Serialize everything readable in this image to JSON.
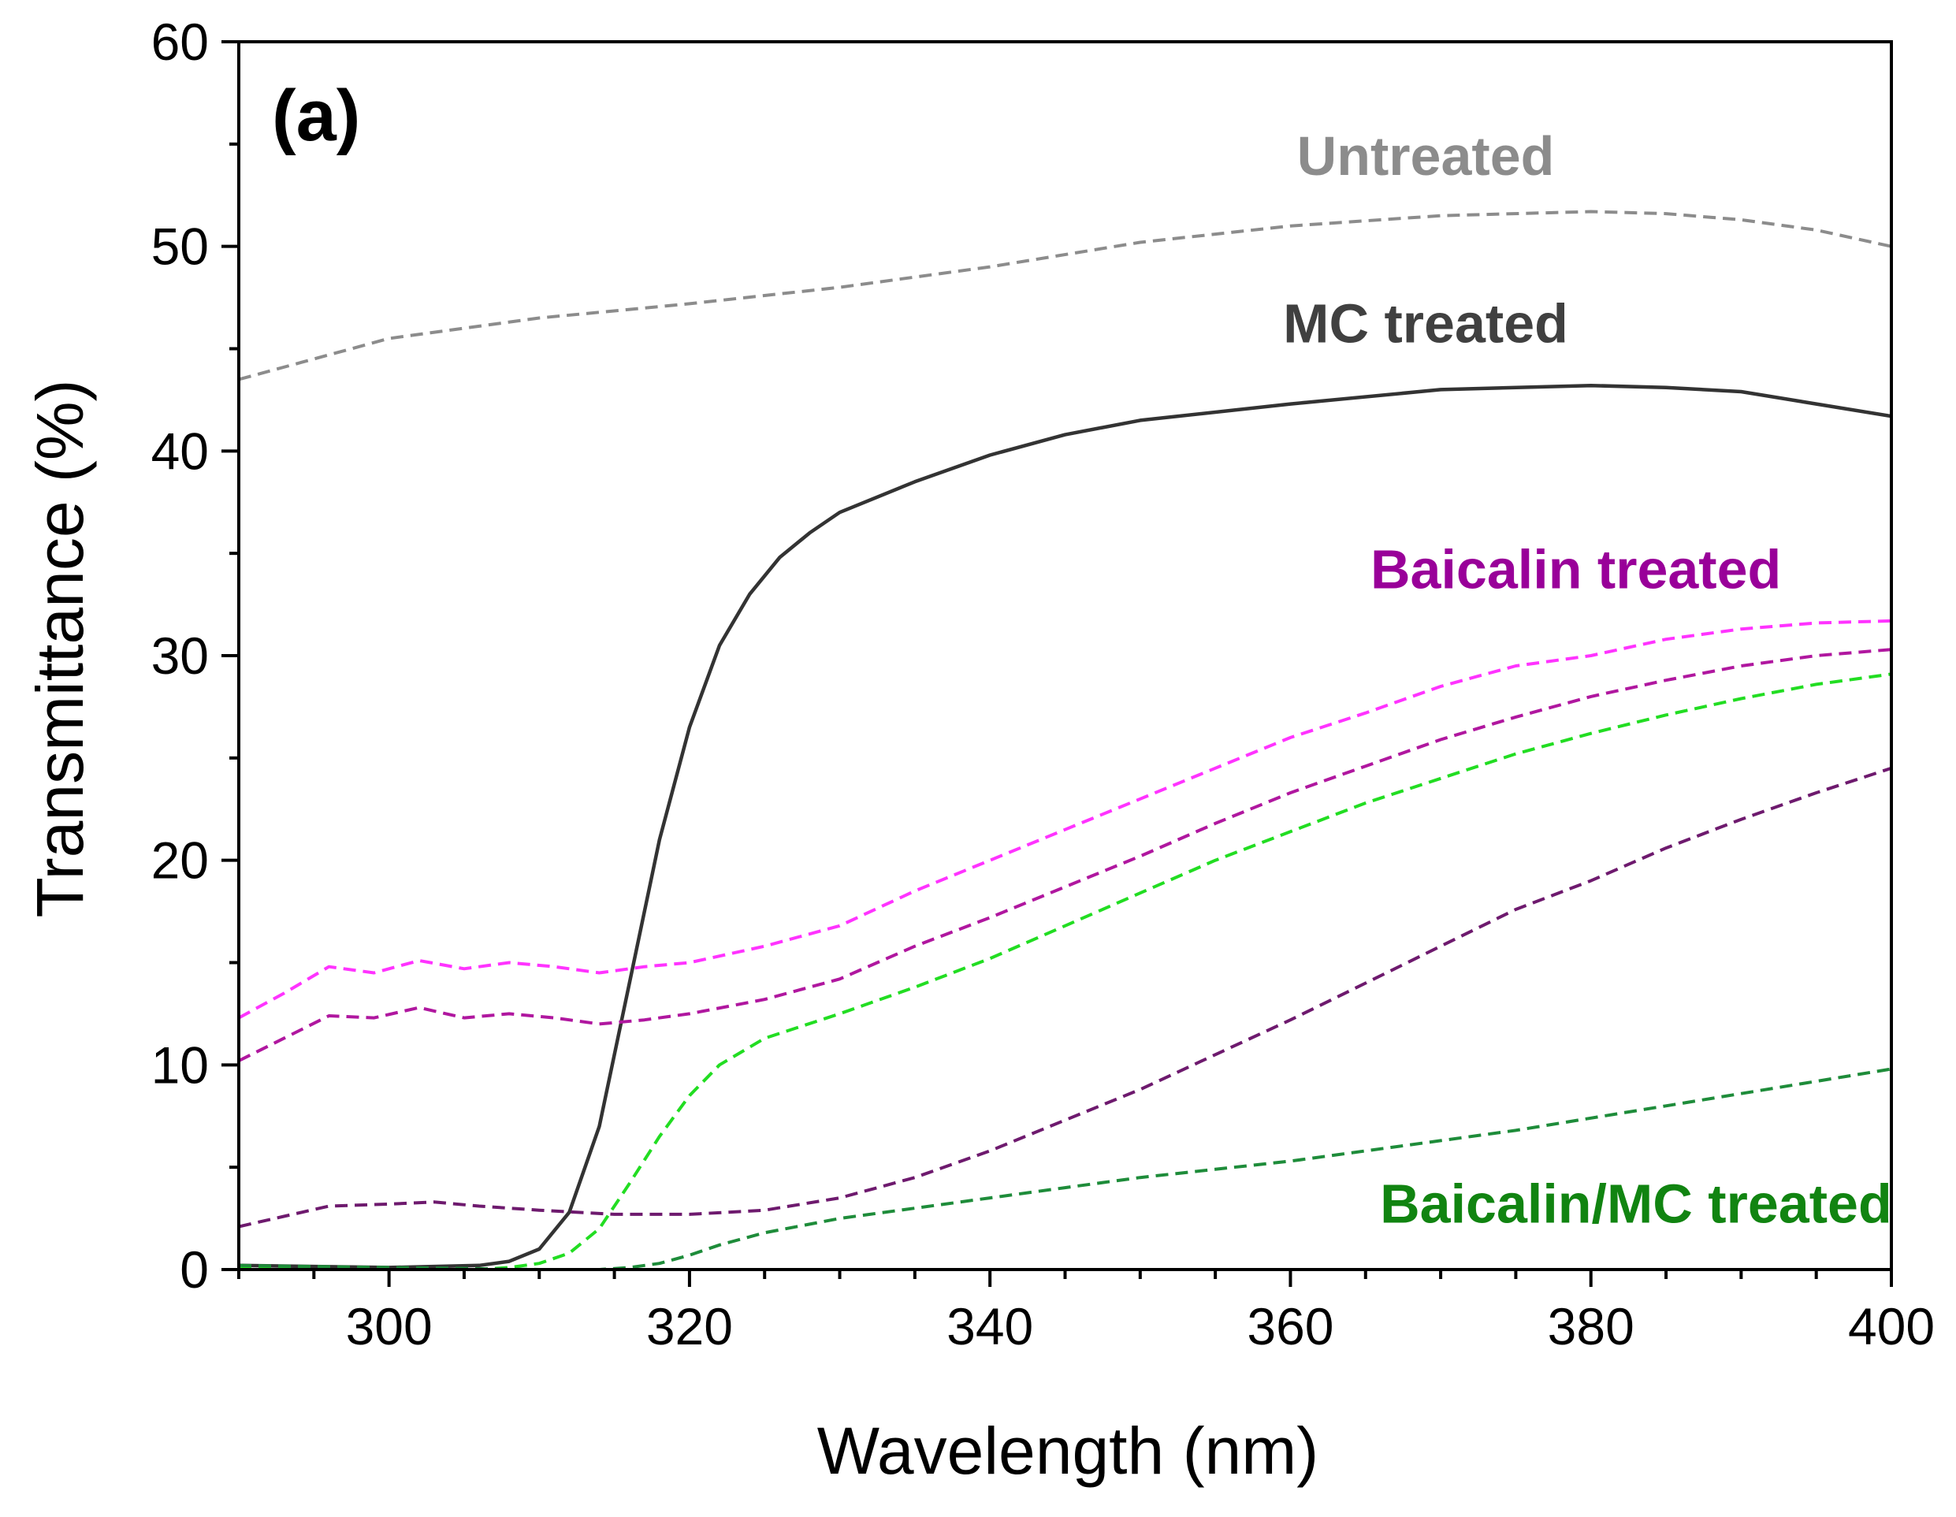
{
  "chart_data": {
    "type": "line",
    "panel_label": "(a)",
    "xlabel": "Wavelength (nm)",
    "ylabel": "Transmittance (%)",
    "xlim": [
      290,
      400
    ],
    "ylim": [
      0,
      60
    ],
    "xticks": [
      300,
      320,
      340,
      360,
      380,
      400
    ],
    "yticks": [
      0,
      10,
      20,
      30,
      40,
      50,
      60
    ],
    "annotations": [
      {
        "text": "Untreated",
        "x": 369,
        "y": 53.5,
        "color": "#8c8c8c"
      },
      {
        "text": "MC treated",
        "x": 369,
        "y": 45.3,
        "color": "#404040"
      },
      {
        "text": "Baicalin treated",
        "x": 379,
        "y": 33.3,
        "color": "#990099"
      },
      {
        "text": "Baicalin/MC treated",
        "x": 383,
        "y": 2.3,
        "color": "#118411"
      }
    ],
    "series": [
      {
        "name": "Untreated",
        "color": "#8c8c8c",
        "dash": "dashed",
        "x": [
          290,
          300,
          310,
          320,
          330,
          340,
          350,
          360,
          370,
          380,
          385,
          390,
          395,
          400
        ],
        "y": [
          43.5,
          45.5,
          46.5,
          47.2,
          48.0,
          49.0,
          50.2,
          51.0,
          51.5,
          51.7,
          51.6,
          51.3,
          50.8,
          50.0
        ]
      },
      {
        "name": "MC treated",
        "color": "#333333",
        "dash": "solid",
        "x": [
          290,
          300,
          306,
          308,
          310,
          312,
          314,
          316,
          318,
          320,
          322,
          324,
          326,
          328,
          330,
          335,
          340,
          345,
          350,
          360,
          370,
          380,
          385,
          390,
          395,
          400
        ],
        "y": [
          0.2,
          0.1,
          0.2,
          0.4,
          1.0,
          2.8,
          7.0,
          14.0,
          21.0,
          26.5,
          30.5,
          33.0,
          34.8,
          36.0,
          37.0,
          38.5,
          39.8,
          40.8,
          41.5,
          42.3,
          43.0,
          43.2,
          43.1,
          42.9,
          42.3,
          41.7
        ]
      },
      {
        "name": "Baicalin treated 1",
        "color": "#ff33ff",
        "dash": "dashed",
        "x": [
          290,
          293,
          296,
          299,
          302,
          305,
          308,
          311,
          314,
          317,
          320,
          325,
          330,
          335,
          340,
          345,
          350,
          355,
          360,
          365,
          370,
          375,
          380,
          385,
          390,
          395,
          400
        ],
        "y": [
          12.3,
          13.5,
          14.8,
          14.5,
          15.1,
          14.7,
          15.0,
          14.8,
          14.5,
          14.8,
          15.0,
          15.8,
          16.8,
          18.5,
          20.0,
          21.5,
          23.0,
          24.5,
          26.0,
          27.2,
          28.5,
          29.5,
          30.0,
          30.8,
          31.3,
          31.6,
          31.7
        ]
      },
      {
        "name": "Baicalin treated 2",
        "color": "#b0179f",
        "dash": "dashed",
        "x": [
          290,
          293,
          296,
          299,
          302,
          305,
          308,
          311,
          314,
          317,
          320,
          325,
          330,
          335,
          340,
          345,
          350,
          355,
          360,
          365,
          370,
          375,
          380,
          385,
          390,
          395,
          400
        ],
        "y": [
          10.2,
          11.3,
          12.4,
          12.3,
          12.8,
          12.3,
          12.5,
          12.3,
          12.0,
          12.2,
          12.5,
          13.2,
          14.2,
          15.8,
          17.2,
          18.7,
          20.2,
          21.8,
          23.3,
          24.6,
          25.9,
          27.0,
          28.0,
          28.8,
          29.5,
          30.0,
          30.3
        ]
      },
      {
        "name": "Baicalin/MC treated 1",
        "color": "#22dd22",
        "dash": "dashed",
        "x": [
          290,
          300,
          306,
          308,
          310,
          312,
          314,
          316,
          318,
          320,
          322,
          325,
          330,
          335,
          340,
          345,
          350,
          355,
          360,
          365,
          370,
          375,
          380,
          385,
          390,
          395,
          400
        ],
        "y": [
          0.1,
          0.0,
          0.0,
          0.1,
          0.3,
          0.8,
          2.0,
          4.2,
          6.5,
          8.5,
          10.0,
          11.3,
          12.5,
          13.8,
          15.2,
          16.8,
          18.4,
          20.0,
          21.4,
          22.8,
          24.0,
          25.2,
          26.2,
          27.1,
          27.9,
          28.6,
          29.1
        ]
      },
      {
        "name": "Baicalin treated 3",
        "color": "#6e1a6e",
        "dash": "dashed",
        "x": [
          290,
          293,
          296,
          300,
          303,
          306,
          310,
          315,
          320,
          325,
          330,
          335,
          340,
          345,
          350,
          355,
          360,
          365,
          370,
          375,
          380,
          385,
          390,
          395,
          400
        ],
        "y": [
          2.1,
          2.6,
          3.1,
          3.2,
          3.3,
          3.1,
          2.9,
          2.7,
          2.7,
          2.9,
          3.5,
          4.5,
          5.8,
          7.3,
          8.8,
          10.5,
          12.2,
          14.0,
          15.8,
          17.6,
          19.0,
          20.6,
          22.0,
          23.3,
          24.5
        ]
      },
      {
        "name": "Baicalin/MC treated 2",
        "color": "#1e8c3a",
        "dash": "dashed",
        "x": [
          290,
          300,
          310,
          314,
          316,
          318,
          320,
          322,
          325,
          330,
          335,
          340,
          345,
          350,
          355,
          360,
          365,
          370,
          375,
          380,
          385,
          390,
          395,
          400
        ],
        "y": [
          0.2,
          0.1,
          0.0,
          0.0,
          0.1,
          0.3,
          0.7,
          1.2,
          1.8,
          2.5,
          3.0,
          3.5,
          4.0,
          4.5,
          4.9,
          5.3,
          5.8,
          6.3,
          6.8,
          7.4,
          8.0,
          8.6,
          9.2,
          9.8
        ]
      }
    ]
  }
}
